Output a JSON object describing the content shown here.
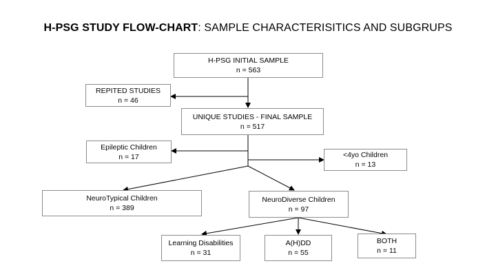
{
  "title": {
    "bold": "H-PSG STUDY FLOW-CHART",
    "rest": ": SAMPLE CHARACTERISITICS AND SUBGRUPS"
  },
  "nodes": {
    "initial": {
      "label": "H-PSG INITIAL SAMPLE",
      "n": "n = 563"
    },
    "repited": {
      "label": "REPITED STUDIES",
      "n": "n = 46"
    },
    "unique": {
      "label": "UNIQUE STUDIES - FINAL SAMPLE",
      "n": "n = 517"
    },
    "epileptic": {
      "label": "Epileptic Children",
      "n": "n = 17"
    },
    "under4": {
      "label": "<4yo Children",
      "n": "n = 13"
    },
    "neurotypical": {
      "label": "NeuroTypical Children",
      "n": "n = 389"
    },
    "neurodiverse": {
      "label": "NeuroDiverse Children",
      "n": "n = 97"
    },
    "learning": {
      "label": "Learning Disabilities",
      "n": "n = 31"
    },
    "ahdd": {
      "label": "A(H)DD",
      "n": "n = 55"
    },
    "both": {
      "label": "BOTH",
      "n": "n = 11"
    }
  },
  "colors": {
    "box_border": "#8a8a8a",
    "line": "#000000"
  }
}
